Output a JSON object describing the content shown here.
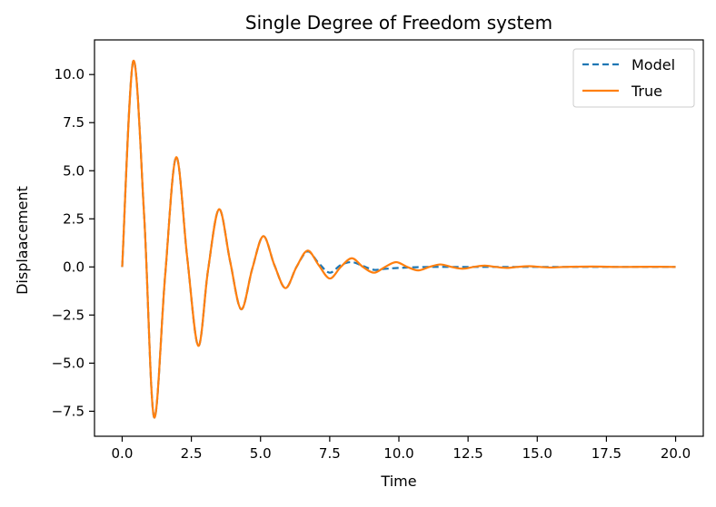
{
  "chart_data": {
    "type": "line",
    "title": "Single Degree of Freedom system",
    "xlabel": "Time",
    "ylabel": "Displaacement",
    "xlim": [
      -1.0,
      21.0
    ],
    "ylim": [
      -8.8,
      11.8
    ],
    "xticks": [
      0.0,
      2.5,
      5.0,
      7.5,
      10.0,
      12.5,
      15.0,
      17.5,
      20.0
    ],
    "xtick_labels": [
      "0.0",
      "2.5",
      "5.0",
      "7.5",
      "10.0",
      "12.5",
      "15.0",
      "17.5",
      "20.0"
    ],
    "yticks": [
      -7.5,
      -5.0,
      -2.5,
      0.0,
      2.5,
      5.0,
      7.5,
      10.0
    ],
    "ytick_labels": [
      "−7.5",
      "−5.0",
      "−2.5",
      "0.0",
      "2.5",
      "5.0",
      "7.5",
      "10.0"
    ],
    "grid": false,
    "legend": {
      "position": "top-right",
      "entries": [
        "Model",
        "True"
      ]
    },
    "series": [
      {
        "name": "Model",
        "style": "dashed",
        "color": "#1f77b4",
        "x": [
          0.0,
          0.4,
          0.8,
          1.15,
          1.55,
          1.95,
          2.35,
          2.75,
          3.1,
          3.5,
          3.9,
          4.3,
          4.7,
          5.1,
          5.5,
          5.9,
          6.3,
          6.7,
          7.1,
          7.5,
          7.9,
          8.3,
          8.7,
          9.1,
          9.5,
          10.0,
          11.0,
          12.0,
          13.0,
          14.0,
          15.0,
          16.0,
          17.0,
          18.0,
          19.0,
          20.0
        ],
        "y": [
          0.0,
          10.7,
          2.5,
          -7.8,
          -0.5,
          5.7,
          0.5,
          -4.1,
          -0.2,
          3.0,
          0.3,
          -2.2,
          -0.1,
          1.6,
          0.1,
          -1.1,
          0.0,
          0.8,
          0.2,
          -0.3,
          0.1,
          0.25,
          0.05,
          -0.15,
          -0.1,
          -0.05,
          0.0,
          0.0,
          0.0,
          0.0,
          0.0,
          0.0,
          0.0,
          0.0,
          0.0,
          0.0
        ]
      },
      {
        "name": "True",
        "style": "solid",
        "color": "#ff7f0e",
        "x": [
          0.0,
          0.4,
          0.8,
          1.15,
          1.55,
          1.95,
          2.35,
          2.75,
          3.1,
          3.5,
          3.9,
          4.3,
          4.7,
          5.1,
          5.5,
          5.9,
          6.3,
          6.7,
          7.1,
          7.5,
          7.9,
          8.3,
          8.7,
          9.1,
          9.5,
          9.9,
          10.3,
          10.7,
          11.1,
          11.5,
          11.9,
          12.3,
          12.7,
          13.1,
          13.5,
          13.9,
          14.3,
          14.7,
          15.1,
          15.5,
          16.0,
          17.0,
          18.0,
          19.0,
          20.0
        ],
        "y": [
          0.0,
          10.7,
          2.5,
          -7.8,
          -0.5,
          5.7,
          0.5,
          -4.1,
          -0.2,
          3.0,
          0.3,
          -2.2,
          -0.1,
          1.6,
          0.1,
          -1.1,
          0.0,
          0.85,
          0.1,
          -0.6,
          0.0,
          0.45,
          0.0,
          -0.3,
          0.0,
          0.25,
          0.0,
          -0.18,
          0.0,
          0.13,
          0.0,
          -0.09,
          0.0,
          0.07,
          0.0,
          -0.05,
          0.0,
          0.04,
          0.0,
          -0.03,
          0.0,
          0.02,
          0.0,
          0.01,
          0.0
        ]
      }
    ]
  }
}
